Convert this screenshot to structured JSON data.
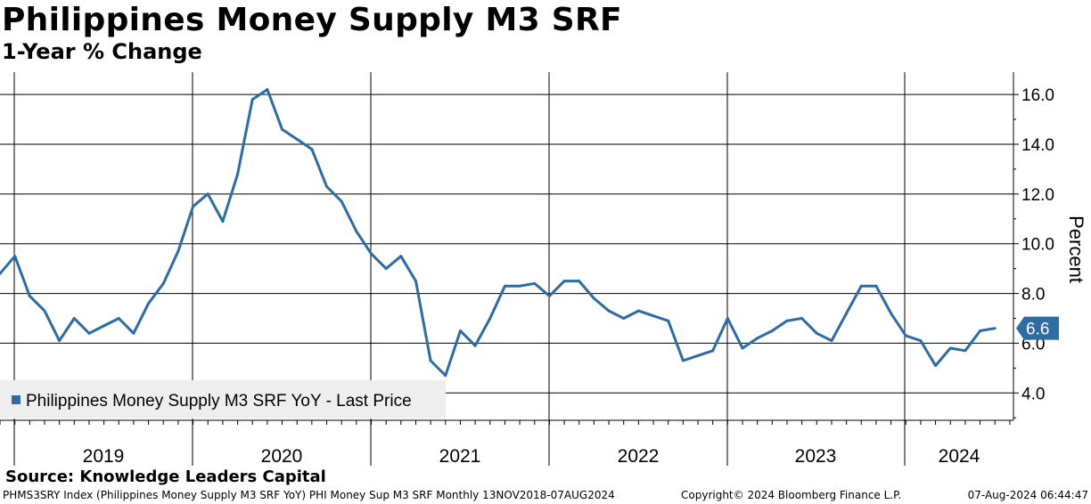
{
  "title": "Philippines Money Supply M3 SRF",
  "subtitle": "1-Year % Change",
  "source": "Source: Knowledge Leaders Capital",
  "footer": {
    "left": "PHMS3SRY Index (Philippines Money Supply M3 SRF YoY) PHI Money Sup M3 SRF  Monthly 13NOV2018-07AUG2024",
    "middle": "Copyright© 2024 Bloomberg Finance L.P.",
    "right": "07-Aug-2024 06:44:47"
  },
  "colors": {
    "series": "#2e6ca4",
    "grid": "#000000",
    "legend_bg": "#eeeeee"
  },
  "chart_data": {
    "type": "line",
    "title": "Philippines Money Supply M3 SRF",
    "subtitle": "1-Year % Change",
    "xlabel": "",
    "ylabel": "Percent",
    "ylim": [
      2.9,
      16.9
    ],
    "yticks": [
      4.0,
      6.0,
      8.0,
      10.0,
      12.0,
      14.0,
      16.0
    ],
    "ytick_labels": [
      "4.0",
      "6.0",
      "8.0",
      "10.0",
      "12.0",
      "14.0",
      "16.0"
    ],
    "year_labels": [
      "2019",
      "2020",
      "2021",
      "2022",
      "2023",
      "2024"
    ],
    "grid": true,
    "legend": {
      "position": "bottom-left",
      "label": "Philippines Money Supply M3 SRF YoY - Last Price"
    },
    "last_value_label": "6.6",
    "series": [
      {
        "name": "Philippines Money Supply M3 SRF YoY - Last Price",
        "x": [
          "2018-11",
          "2018-12",
          "2019-01",
          "2019-02",
          "2019-03",
          "2019-04",
          "2019-05",
          "2019-06",
          "2019-07",
          "2019-08",
          "2019-09",
          "2019-10",
          "2019-11",
          "2019-12",
          "2020-01",
          "2020-02",
          "2020-03",
          "2020-04",
          "2020-05",
          "2020-06",
          "2020-07",
          "2020-08",
          "2020-09",
          "2020-10",
          "2020-11",
          "2020-12",
          "2021-01",
          "2021-02",
          "2021-03",
          "2021-04",
          "2021-05",
          "2021-06",
          "2021-07",
          "2021-08",
          "2021-09",
          "2021-10",
          "2021-11",
          "2021-12",
          "2022-01",
          "2022-02",
          "2022-03",
          "2022-04",
          "2022-05",
          "2022-06",
          "2022-07",
          "2022-08",
          "2022-09",
          "2022-10",
          "2022-11",
          "2022-12",
          "2023-01",
          "2023-02",
          "2023-03",
          "2023-04",
          "2023-05",
          "2023-06",
          "2023-07",
          "2023-08",
          "2023-09",
          "2023-10",
          "2023-11",
          "2023-12",
          "2024-01",
          "2024-02",
          "2024-03",
          "2024-04",
          "2024-05",
          "2024-06"
        ],
        "values": [
          8.8,
          9.5,
          7.9,
          7.3,
          6.1,
          7.0,
          6.4,
          6.7,
          7.0,
          6.4,
          7.6,
          8.4,
          9.7,
          11.5,
          12.0,
          10.9,
          12.8,
          15.8,
          16.2,
          14.6,
          14.2,
          13.8,
          12.3,
          11.7,
          10.5,
          9.6,
          9.0,
          9.5,
          8.5,
          5.3,
          4.7,
          6.5,
          5.9,
          7.0,
          8.3,
          8.3,
          8.4,
          7.9,
          8.5,
          8.5,
          7.8,
          7.3,
          7.0,
          7.3,
          7.1,
          6.9,
          5.3,
          5.5,
          5.7,
          7.0,
          5.8,
          6.2,
          6.5,
          6.9,
          7.0,
          6.4,
          6.1,
          7.2,
          8.3,
          8.3,
          7.2,
          6.3,
          6.1,
          5.1,
          5.8,
          5.7,
          6.5,
          6.6
        ]
      }
    ]
  }
}
